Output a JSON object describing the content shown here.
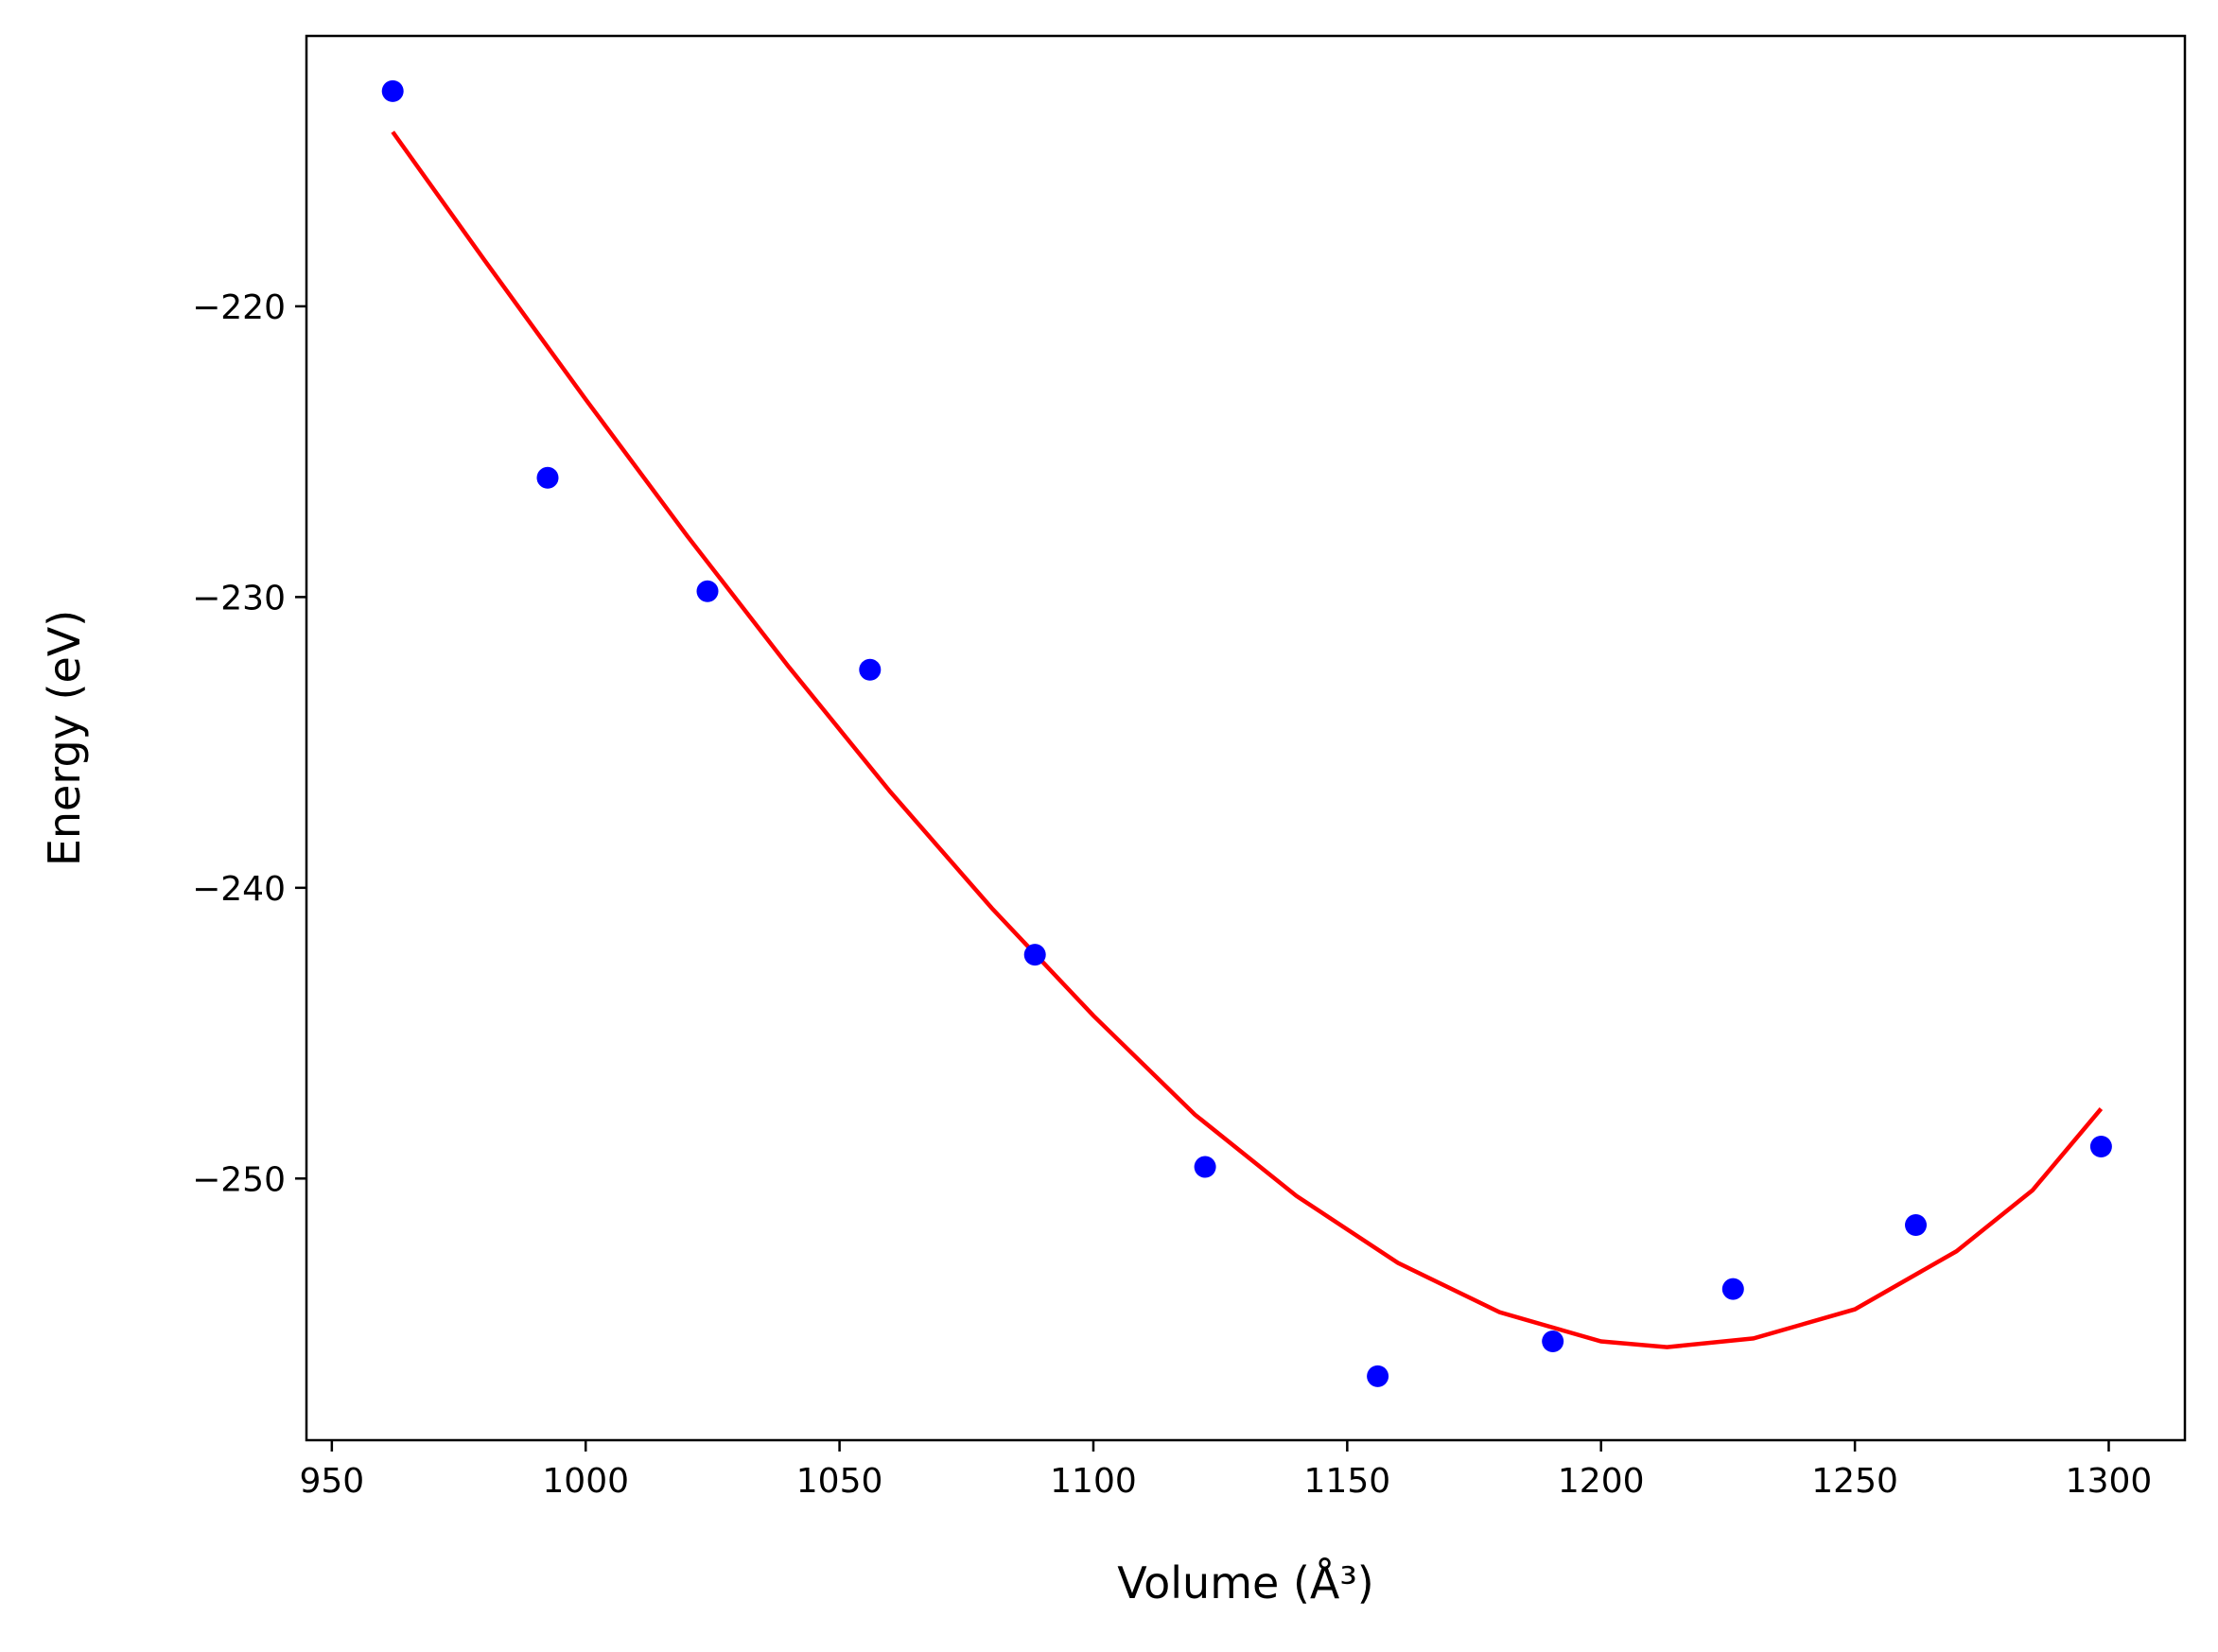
{
  "chart_data": {
    "type": "scatter",
    "title": "",
    "xlabel": "Volume (Å³)",
    "ylabel": "Energy (eV)",
    "xlim": [
      945,
      1315
    ],
    "ylim": [
      -259,
      -210.7
    ],
    "x_ticks": [
      950,
      1000,
      1050,
      1100,
      1150,
      1200,
      1250,
      1300
    ],
    "y_ticks": [
      -220,
      -230,
      -240,
      -250
    ],
    "grid": false,
    "series": [
      {
        "kind": "points",
        "color": "#0000ff",
        "x": [
          962,
          992.5,
          1024,
          1056,
          1088.5,
          1122,
          1156,
          1190.5,
          1226,
          1262,
          1298.5
        ],
        "y": [
          -212.6,
          -225.9,
          -229.8,
          -232.5,
          -242.3,
          -249.6,
          -256.8,
          -255.6,
          -253.8,
          -251.6,
          -248.9
        ]
      },
      {
        "kind": "fit-line",
        "color": "#ff0000",
        "x": [
          962,
          980,
          1000,
          1020,
          1040,
          1060,
          1080,
          1100,
          1120,
          1140,
          1160,
          1180,
          1200,
          1213,
          1230,
          1250,
          1270,
          1285,
          1298.5
        ],
        "y": [
          -214.0,
          -218.4,
          -223.2,
          -227.9,
          -232.4,
          -236.7,
          -240.7,
          -244.4,
          -247.8,
          -250.6,
          -252.9,
          -254.6,
          -255.6,
          -255.8,
          -255.5,
          -254.5,
          -252.5,
          -250.4,
          -247.6
        ]
      }
    ]
  }
}
